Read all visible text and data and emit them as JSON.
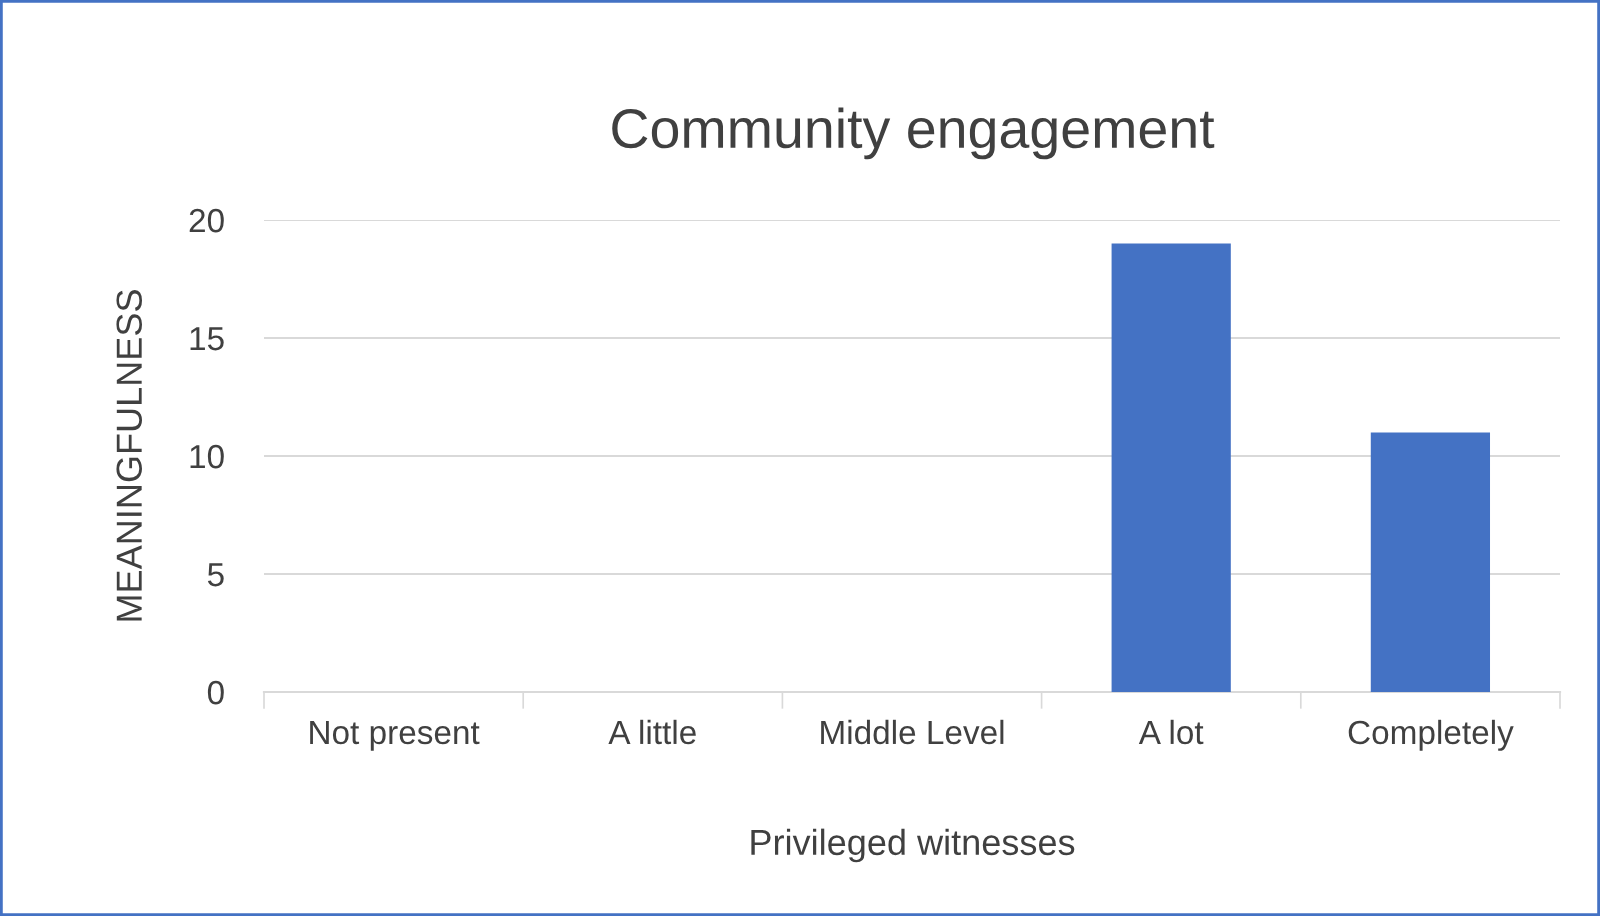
{
  "chart_data": {
    "type": "bar",
    "title": "Community engagement",
    "xlabel": "Privileged witnesses",
    "ylabel": "MEANINGFULNESS",
    "categories": [
      "Not present",
      "A little",
      "Middle Level",
      "A lot",
      "Completely"
    ],
    "values": [
      0,
      0,
      0,
      19,
      11
    ],
    "color": "#4472c4",
    "ylim": [
      0,
      20
    ],
    "yticks": [
      0,
      5,
      10,
      15,
      20
    ],
    "grid": "y",
    "legend": false
  }
}
